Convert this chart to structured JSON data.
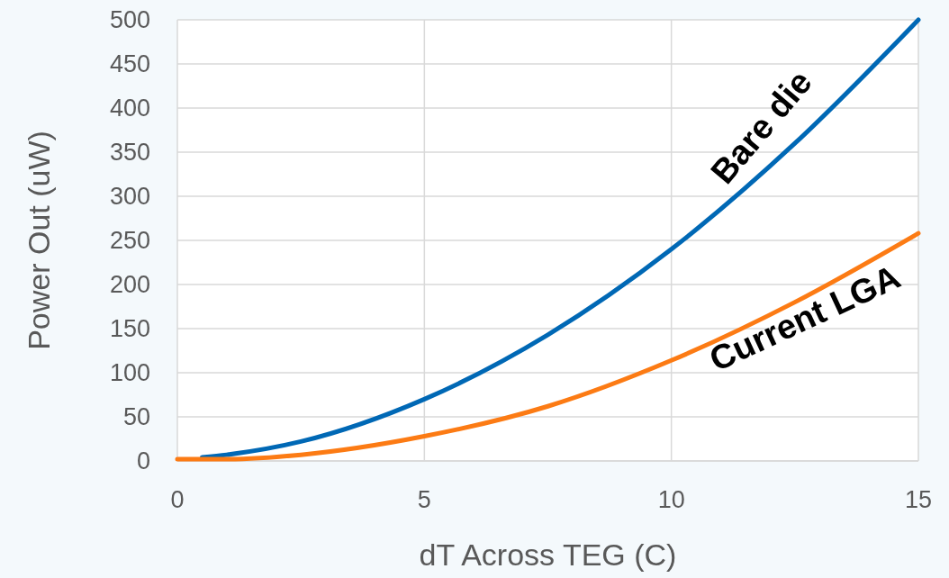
{
  "chart_data": {
    "type": "line",
    "xlabel": "dT Across TEG (C)",
    "ylabel": "Power Out (uW)",
    "xlim": [
      0,
      15
    ],
    "xticks": [
      0,
      5,
      10,
      15
    ],
    "ylim": [
      0,
      500
    ],
    "yticks": [
      0,
      50,
      100,
      150,
      200,
      250,
      300,
      350,
      400,
      450,
      500
    ],
    "grid": true,
    "legend": false,
    "marker": "none",
    "line_style": "solid",
    "series": [
      {
        "name": "Bare die",
        "color": "#0068b5",
        "x": [
          0.5,
          1,
          2.5,
          5,
          7.5,
          10,
          12.5,
          15
        ],
        "values": [
          4,
          7,
          22,
          70,
          143,
          240,
          360,
          500
        ]
      },
      {
        "name": "Current LGA",
        "color": "#fc7b14",
        "x": [
          0,
          1,
          2.5,
          5,
          7.5,
          10,
          12.5,
          15
        ],
        "values": [
          2,
          2,
          7,
          28,
          62,
          114,
          180,
          258
        ]
      }
    ]
  }
}
